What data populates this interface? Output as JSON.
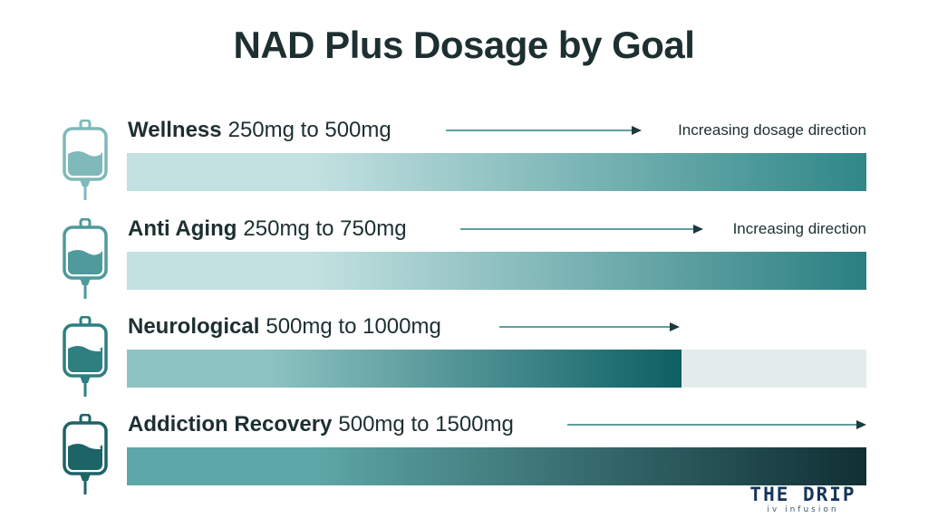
{
  "chart_data": {
    "type": "bar",
    "title": "NAD Plus Dosage by Goal",
    "xlabel": "",
    "ylabel": "",
    "xlim": [
      0,
      1500
    ],
    "categories": [
      "Wellness",
      "Anti Aging",
      "Neurological",
      "Addiction Recovery"
    ],
    "series": [
      {
        "values_min": [
          250,
          250,
          500,
          500
        ],
        "values_max": [
          500,
          750,
          1000,
          1500
        ]
      }
    ],
    "rows": [
      {
        "goal": "Wellness",
        "range": "250mg to 500mg",
        "min": 250,
        "max": 500,
        "level": 1.0,
        "note": "Increasing dosage direction",
        "color_start": "#c3e1e1",
        "color_end": "#2f8788"
      },
      {
        "goal": "Anti Aging",
        "range": "250mg to 750mg",
        "min": 250,
        "max": 750,
        "level": 1.0,
        "note": "Increasing direction",
        "color_start": "#c3e1e1",
        "color_end": "#2a7f81"
      },
      {
        "goal": "Neurological",
        "range": "500mg to 1000mg",
        "min": 500,
        "max": 1000,
        "level": 0.75,
        "note": "",
        "color_start": "#8ec3c3",
        "color_end": "#0d5f63"
      },
      {
        "goal": "Addiction Recovery",
        "range": "500mg to 1500mg",
        "min": 500,
        "max": 1500,
        "level": 1.0,
        "note": "",
        "color_start": "#5ea7a8",
        "color_end": "#0f2f34"
      }
    ]
  },
  "brand": {
    "name": "THE DRIP",
    "sub": "iv infusion"
  },
  "icon": {
    "name": "iv-bag-icon"
  },
  "colors": {
    "title": "#1d2f31",
    "arrow": "#2a7f81",
    "track": "#e4ebeb",
    "icon_shades": [
      "#7fb9b9",
      "#4f9a9b",
      "#2f7f80",
      "#1d6466"
    ]
  }
}
